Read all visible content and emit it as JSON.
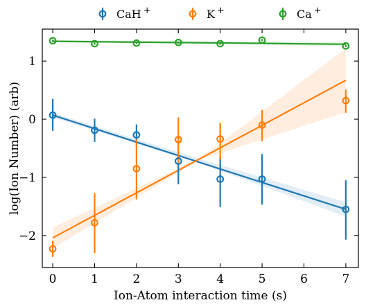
{
  "chart_data": {
    "type": "scatter",
    "xlabel": "Ion-Atom interaction time (s)",
    "ylabel": "log(Ion Number) (arb)",
    "xlim": [
      -0.25,
      7.3
    ],
    "ylim": [
      -2.55,
      1.55
    ],
    "x_ticks": [
      0,
      1,
      2,
      3,
      4,
      5,
      6,
      7
    ],
    "y_ticks": [
      -2,
      -1,
      0,
      1
    ],
    "y_tick_labels": [
      "−2",
      "−1",
      "0",
      "1"
    ],
    "grid": false,
    "legend_position": "top, outside plot",
    "series": [
      {
        "name": "CaH",
        "name_sup": "+",
        "color": "#1f77b4",
        "x": [
          0,
          1,
          2,
          3,
          4,
          5,
          7
        ],
        "y": [
          0.07,
          -0.19,
          -0.27,
          -0.72,
          -1.03,
          -1.03,
          -1.55
        ],
        "err_lo": [
          0.27,
          0.2,
          0.18,
          0.4,
          0.48,
          0.44,
          0.52
        ],
        "err_hi": [
          0.28,
          0.2,
          0.18,
          0.41,
          0.38,
          0.43,
          0.5
        ],
        "fit": {
          "x": [
            0,
            7
          ],
          "y": [
            0.07,
            -1.55
          ]
        },
        "band": {
          "x": [
            0,
            3.5,
            7
          ],
          "upper": [
            0.11,
            -0.68,
            -1.43
          ],
          "lower": [
            0.03,
            -0.76,
            -1.67
          ]
        }
      },
      {
        "name": "K",
        "name_sup": "+",
        "color": "#ff7f0e",
        "x": [
          0,
          1,
          2,
          3,
          4,
          5,
          7
        ],
        "y": [
          -2.23,
          -1.78,
          -0.85,
          -0.35,
          -0.34,
          -0.1,
          0.32
        ],
        "err_lo": [
          0.14,
          0.52,
          0.53,
          0.42,
          0.35,
          0.28,
          0.21
        ],
        "err_hi": [
          0.14,
          0.51,
          0.5,
          0.38,
          0.28,
          0.26,
          0.19
        ],
        "fit": {
          "x": [
            0,
            7
          ],
          "y": [
            -2.04,
            0.67
          ]
        },
        "band": {
          "x": [
            0,
            3.5,
            7
          ],
          "upper": [
            -1.86,
            -0.68,
            1.22
          ],
          "lower": [
            -2.22,
            -0.7,
            0.12
          ]
        }
      },
      {
        "name": "Ca",
        "name_sup": "+",
        "color": "#2ca02c",
        "x": [
          0,
          1,
          2,
          3,
          4,
          5,
          7
        ],
        "y": [
          1.35,
          1.3,
          1.31,
          1.32,
          1.3,
          1.36,
          1.26
        ],
        "err_lo": [
          0.02,
          0.02,
          0.02,
          0.02,
          0.02,
          0.02,
          0.02
        ],
        "err_hi": [
          0.02,
          0.02,
          0.02,
          0.02,
          0.02,
          0.02,
          0.02
        ],
        "fit": {
          "x": [
            0,
            7
          ],
          "y": [
            1.34,
            1.29
          ]
        },
        "band": {
          "x": [
            0,
            3.5,
            7
          ],
          "upper": [
            1.36,
            1.34,
            1.33
          ],
          "lower": [
            1.32,
            1.31,
            1.25
          ]
        }
      }
    ]
  }
}
